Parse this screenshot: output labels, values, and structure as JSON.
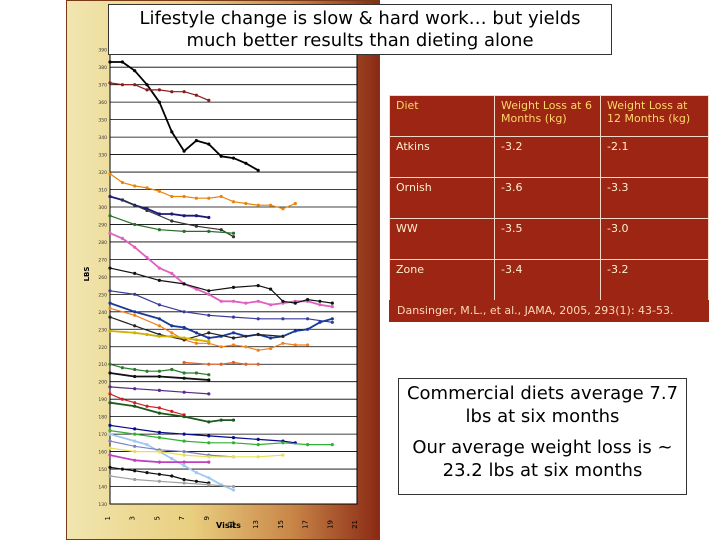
{
  "slide": {
    "title_line1": "Lifestyle change is slow & hard work… but yields",
    "title_line2": "much better results than dieting alone"
  },
  "table": {
    "headers": [
      "Diet",
      "Weight Loss at 6 Months (kg)",
      "Weight Loss at 12 Months (kg)"
    ],
    "rows": [
      [
        "Atkins",
        "-3.2",
        "-2.1"
      ],
      [
        "Ornish",
        "-3.6",
        "-3.3"
      ],
      [
        "WW",
        "-3.5",
        "-3.0"
      ],
      [
        "Zone",
        "-3.4",
        "-3.2"
      ]
    ],
    "citation": "Dansinger, M.L., et al., JAMA, 2005, 293(1): 43-53."
  },
  "summary": {
    "line1": "Commercial diets average 7.7 lbs at six months",
    "line2": "Our average weight loss is ~ 23.2 lbs at six months"
  },
  "chart_data": {
    "type": "line",
    "xlabel": "Visits",
    "ylabel": "LBS",
    "x_ticks": [
      1,
      3,
      5,
      7,
      9,
      11,
      13,
      15,
      17,
      19,
      21
    ],
    "y_ticks": [
      130,
      140,
      150,
      160,
      170,
      180,
      190,
      200,
      210,
      220,
      230,
      240,
      250,
      260,
      270,
      280,
      290,
      300,
      310,
      320,
      330,
      340,
      350,
      360,
      370,
      380,
      390
    ],
    "xlim": [
      1,
      21
    ],
    "ylim": [
      130,
      395
    ],
    "grid": true,
    "series": [
      {
        "color": "#000000",
        "values": [
          [
            1,
            383
          ],
          [
            2,
            383
          ],
          [
            3,
            378
          ],
          [
            4,
            370
          ],
          [
            5,
            360
          ],
          [
            6,
            343
          ],
          [
            7,
            332
          ],
          [
            8,
            338
          ],
          [
            9,
            336
          ],
          [
            10,
            329
          ],
          [
            11,
            328
          ],
          [
            12,
            325
          ],
          [
            13,
            321
          ]
        ]
      },
      {
        "color": "#8b1a1a",
        "values": [
          [
            1,
            371
          ],
          [
            2,
            370
          ],
          [
            3,
            370
          ],
          [
            4,
            367
          ],
          [
            5,
            367
          ],
          [
            6,
            366
          ],
          [
            7,
            366
          ],
          [
            8,
            364
          ],
          [
            9,
            361
          ]
        ]
      },
      {
        "color": "#e8840a",
        "values": [
          [
            1,
            319
          ],
          [
            2,
            314
          ],
          [
            3,
            312
          ],
          [
            4,
            311
          ],
          [
            5,
            309
          ],
          [
            6,
            306
          ],
          [
            7,
            306
          ],
          [
            8,
            305
          ],
          [
            9,
            305
          ],
          [
            10,
            306
          ],
          [
            11,
            303
          ],
          [
            12,
            302
          ],
          [
            13,
            301
          ],
          [
            14,
            301
          ],
          [
            15,
            299
          ],
          [
            16,
            302
          ]
        ]
      },
      {
        "color": "#1a1a7a",
        "values": [
          [
            1,
            306
          ],
          [
            2,
            304
          ],
          [
            3,
            301
          ],
          [
            4,
            299
          ],
          [
            5,
            296
          ],
          [
            6,
            296
          ],
          [
            7,
            295
          ],
          [
            8,
            295
          ],
          [
            9,
            294
          ]
        ]
      },
      {
        "color": "#333333",
        "values": [
          [
            2,
            304
          ],
          [
            4,
            298
          ],
          [
            6,
            292
          ],
          [
            8,
            289
          ],
          [
            10,
            287
          ],
          [
            11,
            283
          ]
        ]
      },
      {
        "color": "#2a6e2a",
        "values": [
          [
            1,
            295
          ],
          [
            3,
            290
          ],
          [
            5,
            287
          ],
          [
            7,
            286
          ],
          [
            9,
            286
          ],
          [
            11,
            285
          ]
        ]
      },
      {
        "color": "#e060c0",
        "values": [
          [
            1,
            285
          ],
          [
            2,
            282
          ],
          [
            3,
            277
          ],
          [
            4,
            271
          ],
          [
            5,
            265
          ],
          [
            6,
            262
          ],
          [
            7,
            256
          ],
          [
            8,
            253
          ],
          [
            9,
            250
          ],
          [
            10,
            246
          ],
          [
            11,
            246
          ],
          [
            12,
            245
          ],
          [
            13,
            246
          ],
          [
            14,
            244
          ],
          [
            15,
            245
          ],
          [
            16,
            246
          ],
          [
            17,
            246
          ],
          [
            18,
            244
          ],
          [
            19,
            243
          ]
        ]
      },
      {
        "color": "#111111",
        "values": [
          [
            1,
            265
          ],
          [
            3,
            262
          ],
          [
            5,
            258
          ],
          [
            7,
            256
          ],
          [
            9,
            252
          ],
          [
            11,
            254
          ],
          [
            13,
            255
          ],
          [
            14,
            253
          ],
          [
            15,
            246
          ],
          [
            16,
            245
          ],
          [
            17,
            247
          ],
          [
            18,
            246
          ],
          [
            19,
            245
          ]
        ]
      },
      {
        "color": "#3a3a9a",
        "values": [
          [
            1,
            252
          ],
          [
            3,
            250
          ],
          [
            5,
            244
          ],
          [
            7,
            240
          ],
          [
            9,
            238
          ],
          [
            11,
            237
          ],
          [
            13,
            236
          ],
          [
            15,
            236
          ],
          [
            17,
            236
          ],
          [
            19,
            234
          ]
        ]
      },
      {
        "color": "#1a3a9a",
        "values": [
          [
            1,
            245
          ],
          [
            3,
            240
          ],
          [
            5,
            236
          ],
          [
            6,
            232
          ],
          [
            7,
            231
          ],
          [
            8,
            228
          ],
          [
            9,
            225
          ],
          [
            10,
            226
          ],
          [
            11,
            228
          ],
          [
            12,
            226
          ],
          [
            13,
            227
          ],
          [
            14,
            225
          ],
          [
            15,
            226
          ],
          [
            16,
            229
          ],
          [
            17,
            230
          ],
          [
            18,
            234
          ],
          [
            19,
            236
          ]
        ]
      },
      {
        "color": "#f08020",
        "values": [
          [
            1,
            242
          ],
          [
            3,
            238
          ],
          [
            5,
            232
          ],
          [
            6,
            228
          ],
          [
            7,
            224
          ],
          [
            8,
            222
          ],
          [
            9,
            222
          ],
          [
            10,
            220
          ],
          [
            11,
            221
          ],
          [
            12,
            220
          ],
          [
            13,
            218
          ],
          [
            14,
            219
          ],
          [
            15,
            222
          ],
          [
            16,
            221
          ],
          [
            17,
            221
          ]
        ]
      },
      {
        "color": "#222222",
        "values": [
          [
            1,
            237
          ],
          [
            3,
            232
          ],
          [
            5,
            227
          ],
          [
            7,
            224
          ],
          [
            9,
            228
          ],
          [
            11,
            225
          ],
          [
            13,
            227
          ],
          [
            15,
            226
          ]
        ]
      },
      {
        "color": "#d0b000",
        "values": [
          [
            1,
            229
          ],
          [
            3,
            228
          ],
          [
            4,
            227
          ],
          [
            5,
            226
          ],
          [
            6,
            226
          ],
          [
            7,
            225
          ],
          [
            8,
            224
          ],
          [
            9,
            223
          ]
        ]
      },
      {
        "color": "#2a7a2a",
        "values": [
          [
            1,
            210
          ],
          [
            2,
            208
          ],
          [
            3,
            207
          ],
          [
            4,
            206
          ],
          [
            5,
            206
          ],
          [
            6,
            207
          ],
          [
            7,
            205
          ],
          [
            8,
            205
          ],
          [
            9,
            204
          ]
        ]
      },
      {
        "color": "#e06020",
        "values": [
          [
            7,
            211
          ],
          [
            9,
            210
          ],
          [
            10,
            210
          ],
          [
            11,
            211
          ],
          [
            12,
            210
          ],
          [
            13,
            210
          ]
        ]
      },
      {
        "color": "#111111",
        "values": [
          [
            1,
            205
          ],
          [
            3,
            203
          ],
          [
            5,
            203
          ],
          [
            7,
            202
          ],
          [
            9,
            201
          ]
        ]
      },
      {
        "color": "#5a2a8a",
        "values": [
          [
            1,
            197
          ],
          [
            3,
            196
          ],
          [
            5,
            195
          ],
          [
            7,
            194
          ],
          [
            9,
            193
          ]
        ]
      },
      {
        "color": "#cc2222",
        "values": [
          [
            1,
            193
          ],
          [
            2,
            190
          ],
          [
            3,
            188
          ],
          [
            4,
            186
          ],
          [
            5,
            185
          ],
          [
            6,
            183
          ],
          [
            7,
            181
          ]
        ]
      },
      {
        "color": "#1a5a1a",
        "values": [
          [
            1,
            188
          ],
          [
            3,
            186
          ],
          [
            5,
            182
          ],
          [
            7,
            180
          ],
          [
            9,
            177
          ],
          [
            10,
            178
          ],
          [
            11,
            178
          ]
        ]
      },
      {
        "color": "#0a0a8a",
        "values": [
          [
            1,
            175
          ],
          [
            3,
            173
          ],
          [
            5,
            171
          ],
          [
            7,
            170
          ],
          [
            9,
            169
          ],
          [
            11,
            168
          ],
          [
            13,
            167
          ],
          [
            15,
            166
          ],
          [
            16,
            165
          ]
        ]
      },
      {
        "color": "#30b030",
        "values": [
          [
            1,
            172
          ],
          [
            3,
            170
          ],
          [
            5,
            168
          ],
          [
            7,
            166
          ],
          [
            9,
            165
          ],
          [
            11,
            165
          ],
          [
            13,
            164
          ],
          [
            15,
            165
          ],
          [
            17,
            164
          ],
          [
            19,
            164
          ]
        ]
      },
      {
        "color": "#a0c8f0",
        "values": [
          [
            1,
            170
          ],
          [
            3,
            166
          ],
          [
            4,
            164
          ],
          [
            5,
            160
          ],
          [
            6,
            156
          ],
          [
            7,
            152
          ],
          [
            8,
            148
          ],
          [
            9,
            145
          ],
          [
            10,
            141
          ],
          [
            11,
            138
          ]
        ]
      },
      {
        "color": "#8080c0",
        "values": [
          [
            1,
            166
          ],
          [
            3,
            163
          ],
          [
            5,
            161
          ],
          [
            7,
            160
          ],
          [
            9,
            158
          ],
          [
            11,
            157
          ]
        ]
      },
      {
        "color": "#e8e050",
        "values": [
          [
            1,
            162
          ],
          [
            3,
            160
          ],
          [
            5,
            160
          ],
          [
            7,
            158
          ],
          [
            9,
            157
          ],
          [
            11,
            157
          ],
          [
            13,
            157
          ],
          [
            15,
            158
          ]
        ]
      },
      {
        "color": "#c040c0",
        "values": [
          [
            1,
            158
          ],
          [
            3,
            155
          ],
          [
            5,
            154
          ],
          [
            7,
            154
          ],
          [
            9,
            154
          ]
        ]
      },
      {
        "color": "#111111",
        "values": [
          [
            1,
            151
          ],
          [
            2,
            150
          ],
          [
            3,
            149
          ],
          [
            4,
            148
          ],
          [
            5,
            147
          ],
          [
            6,
            146
          ],
          [
            7,
            144
          ],
          [
            8,
            143
          ],
          [
            9,
            142
          ]
        ]
      },
      {
        "color": "#a0a0a0",
        "values": [
          [
            1,
            146
          ],
          [
            3,
            144
          ],
          [
            5,
            143
          ],
          [
            7,
            142
          ],
          [
            9,
            141
          ],
          [
            11,
            140
          ]
        ]
      }
    ]
  }
}
